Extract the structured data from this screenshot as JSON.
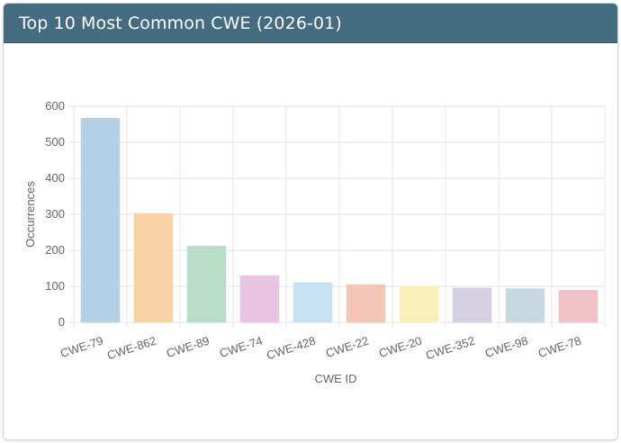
{
  "header": {
    "title": "Top 10 Most Common CWE (2026-01)"
  },
  "chart_data": {
    "type": "bar",
    "categories": [
      "CWE-79",
      "CWE-862",
      "CWE-89",
      "CWE-74",
      "CWE-428",
      "CWE-22",
      "CWE-20",
      "CWE-352",
      "CWE-98",
      "CWE-78"
    ],
    "values": [
      566,
      302,
      211,
      129,
      110,
      104,
      100,
      95,
      93,
      89
    ],
    "colors": [
      "#b3d0e6",
      "#f9d3a6",
      "#b8dcc7",
      "#ebc3e2",
      "#c7e1f2",
      "#f3c6b5",
      "#f8f0b8",
      "#d6d0e3",
      "#c7d9e0",
      "#eec2c7"
    ],
    "xlabel": "CWE ID",
    "ylabel": "Occurrences",
    "ylim": [
      0,
      600
    ],
    "yticks": [
      0,
      100,
      200,
      300,
      400,
      500,
      600
    ],
    "grid": true,
    "legend": "none"
  }
}
